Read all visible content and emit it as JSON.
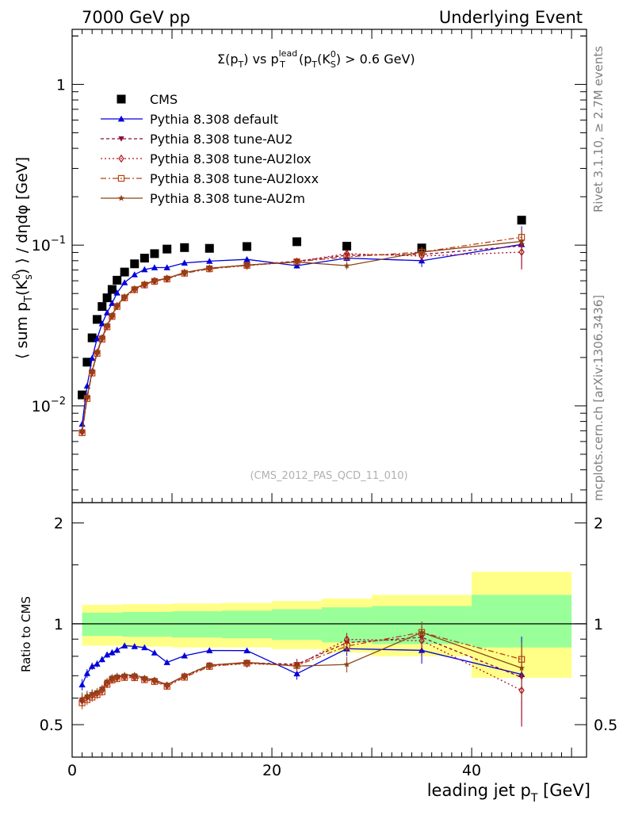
{
  "header": {
    "left": "7000 GeV pp",
    "right": "Underlying Event"
  },
  "side": {
    "rivet": "Rivet 3.1.10, ≥ 2.7M events",
    "mcplots": "mcplots.cern.ch [arXiv:1306.3436]"
  },
  "plot_title": {
    "sigma": "Σ(p",
    "sub_t1": "T",
    "mid": ") vs p",
    "sup_lead": "lead",
    "sub_t2": "T",
    "paren": " (p",
    "sub_t3": "T",
    "k": "(K",
    "sup_0": "0",
    "sub_s": "S",
    "cut": ") > 0.6 GeV)"
  },
  "ylabel_main": {
    "a": "⟨ sum p",
    "sub_t": "T",
    "b": "(K",
    "sup0": "0",
    "subs": "s",
    "c": ") ⟩ / dηdφ [GeV]"
  },
  "ylabel_ratio": "Ratio to CMS",
  "xlabel": {
    "a": "leading jet p",
    "sub": "T",
    "b": " [GeV]"
  },
  "watermark": "(CMS_2012_PAS_QCD_11_010)",
  "ticks": {
    "main_y_major": [
      {
        "label": "1",
        "value": 1
      },
      {
        "label": "10",
        "sup": "−1",
        "value": 0.1
      },
      {
        "label": "10",
        "sup": "−2",
        "value": 0.01
      }
    ],
    "ratio_y": [
      {
        "label": "2",
        "value": 2
      },
      {
        "label": "1",
        "value": 1
      },
      {
        "label": "0.5",
        "value": 0.5
      }
    ],
    "x": [
      {
        "label": "0",
        "value": 0
      },
      {
        "label": "20",
        "value": 20
      },
      {
        "label": "40",
        "value": 40
      }
    ]
  },
  "legend": [
    {
      "label": "CMS",
      "key": "cms"
    },
    {
      "label": "Pythia 8.308 default",
      "key": "def"
    },
    {
      "label": "Pythia 8.308 tune-AU2",
      "key": "au2"
    },
    {
      "label": "Pythia 8.308 tune-AU2lox",
      "key": "lox"
    },
    {
      "label": "Pythia 8.308 tune-AU2loxx",
      "key": "loxx"
    },
    {
      "label": "Pythia 8.308 tune-AU2m",
      "key": "m"
    }
  ],
  "colors": {
    "cms": "#000000",
    "def": "#0000dd",
    "au2": "#8b0a3c",
    "lox": "#b01020",
    "loxx": "#b84010",
    "m": "#8b4513",
    "band_inner": "#99ff99",
    "band_outer": "#ffff88"
  },
  "chart_data": {
    "type": "line",
    "x_scale": "linear",
    "xlim": [
      0,
      51.5
    ],
    "main_ylim": [
      0.0025,
      2.2
    ],
    "main_yscale": "log",
    "ratio_ylim": [
      0.4,
      2.3
    ],
    "ratio_yscale": "log",
    "x": [
      1.0,
      1.5,
      2.0,
      2.5,
      3.0,
      3.5,
      4.0,
      4.5,
      5.25,
      6.25,
      7.25,
      8.25,
      9.5,
      11.25,
      13.75,
      17.5,
      22.5,
      27.5,
      35.0,
      45.0
    ],
    "series": [
      {
        "name": "CMS",
        "key": "cms",
        "marker": "square-filled",
        "values": [
          0.0117,
          0.0187,
          0.0265,
          0.0345,
          0.0415,
          0.047,
          0.053,
          0.0605,
          0.068,
          0.0765,
          0.083,
          0.0885,
          0.0945,
          0.0965,
          0.0955,
          0.098,
          0.105,
          0.0985,
          0.096,
          0.143
        ]
      },
      {
        "name": "Pythia 8.308 default",
        "key": "def",
        "marker": "triangle-up-filled",
        "dash": "",
        "values": [
          0.0077,
          0.0133,
          0.0198,
          0.0262,
          0.0325,
          0.038,
          0.0435,
          0.0505,
          0.0585,
          0.0655,
          0.0705,
          0.0725,
          0.0725,
          0.0775,
          0.0795,
          0.0815,
          0.0745,
          0.083,
          0.08,
          0.101
        ],
        "err": [
          0.0003,
          0.0004,
          0.0005,
          0.0006,
          0.0007,
          0.0008,
          0.0009,
          0.001,
          0.001,
          0.001,
          0.001,
          0.001,
          0.001,
          0.001,
          0.001,
          0.0015,
          0.003,
          0.004,
          0.007,
          0.03
        ]
      },
      {
        "name": "Pythia 8.308 tune-AU2",
        "key": "au2",
        "marker": "triangle-down-filled",
        "dash": "4,3",
        "values": [
          0.0069,
          0.0113,
          0.0163,
          0.0215,
          0.0265,
          0.0315,
          0.0365,
          0.042,
          0.0475,
          0.0535,
          0.057,
          0.06,
          0.062,
          0.0675,
          0.072,
          0.075,
          0.0795,
          0.0865,
          0.0875,
          0.099
        ],
        "err": [
          0.0003,
          0.0004,
          0.0005,
          0.0006,
          0.0007,
          0.0008,
          0.0009,
          0.001,
          0.001,
          0.001,
          0.001,
          0.001,
          0.001,
          0.001,
          0.001,
          0.0015,
          0.003,
          0.004,
          0.007,
          0.025
        ]
      },
      {
        "name": "Pythia 8.308 tune-AU2lox",
        "key": "lox",
        "marker": "diamond-open",
        "dash": "2,3",
        "values": [
          0.0069,
          0.0113,
          0.0162,
          0.0214,
          0.0263,
          0.0312,
          0.0362,
          0.0418,
          0.0472,
          0.053,
          0.0568,
          0.0598,
          0.0618,
          0.0672,
          0.0715,
          0.0745,
          0.079,
          0.0885,
          0.0855,
          0.0905
        ],
        "err": [
          0.0003,
          0.0004,
          0.0005,
          0.0006,
          0.0007,
          0.0008,
          0.0009,
          0.001,
          0.001,
          0.001,
          0.001,
          0.001,
          0.001,
          0.001,
          0.001,
          0.0015,
          0.003,
          0.004,
          0.007,
          0.02
        ]
      },
      {
        "name": "Pythia 8.308 tune-AU2loxx",
        "key": "loxx",
        "marker": "square-open",
        "dash": "7,3,2,3",
        "values": [
          0.0068,
          0.0111,
          0.016,
          0.0212,
          0.026,
          0.031,
          0.036,
          0.0415,
          0.047,
          0.0528,
          0.0565,
          0.0595,
          0.0615,
          0.0668,
          0.0712,
          0.0748,
          0.0788,
          0.0845,
          0.0905,
          0.112
        ],
        "err": [
          0.0003,
          0.0004,
          0.0005,
          0.0006,
          0.0007,
          0.0008,
          0.0009,
          0.001,
          0.001,
          0.001,
          0.001,
          0.001,
          0.001,
          0.001,
          0.001,
          0.0015,
          0.003,
          0.004,
          0.007,
          0.012
        ]
      },
      {
        "name": "Pythia 8.308 tune-AU2m",
        "key": "m",
        "marker": "star",
        "dash": "",
        "values": [
          0.007,
          0.0114,
          0.0164,
          0.0216,
          0.0266,
          0.0316,
          0.0366,
          0.0422,
          0.0478,
          0.0538,
          0.0572,
          0.0602,
          0.0622,
          0.0675,
          0.0718,
          0.0752,
          0.0785,
          0.0745,
          0.0905,
          0.1055
        ],
        "err": [
          0.0003,
          0.0004,
          0.0005,
          0.0006,
          0.0007,
          0.0008,
          0.0009,
          0.001,
          0.001,
          0.001,
          0.001,
          0.001,
          0.001,
          0.001,
          0.001,
          0.0015,
          0.003,
          0.004,
          0.007,
          0.02
        ]
      }
    ],
    "bands": [
      {
        "x0": 1,
        "x1": 5,
        "inner": [
          0.92,
          1.08
        ],
        "outer": [
          0.86,
          1.14
        ]
      },
      {
        "x0": 5,
        "x1": 10,
        "inner": [
          0.915,
          1.085
        ],
        "outer": [
          0.855,
          1.145
        ]
      },
      {
        "x0": 10,
        "x1": 15,
        "inner": [
          0.91,
          1.09
        ],
        "outer": [
          0.85,
          1.15
        ]
      },
      {
        "x0": 15,
        "x1": 20,
        "inner": [
          0.905,
          1.095
        ],
        "outer": [
          0.85,
          1.155
        ]
      },
      {
        "x0": 20,
        "x1": 25,
        "inner": [
          0.895,
          1.105
        ],
        "outer": [
          0.84,
          1.17
        ]
      },
      {
        "x0": 25,
        "x1": 30,
        "inner": [
          0.88,
          1.12
        ],
        "outer": [
          0.82,
          1.19
        ]
      },
      {
        "x0": 30,
        "x1": 40,
        "inner": [
          0.87,
          1.13
        ],
        "outer": [
          0.8,
          1.22
        ]
      },
      {
        "x0": 40,
        "x1": 50,
        "inner": [
          0.85,
          1.22
        ],
        "outer": [
          0.69,
          1.43
        ]
      }
    ]
  }
}
